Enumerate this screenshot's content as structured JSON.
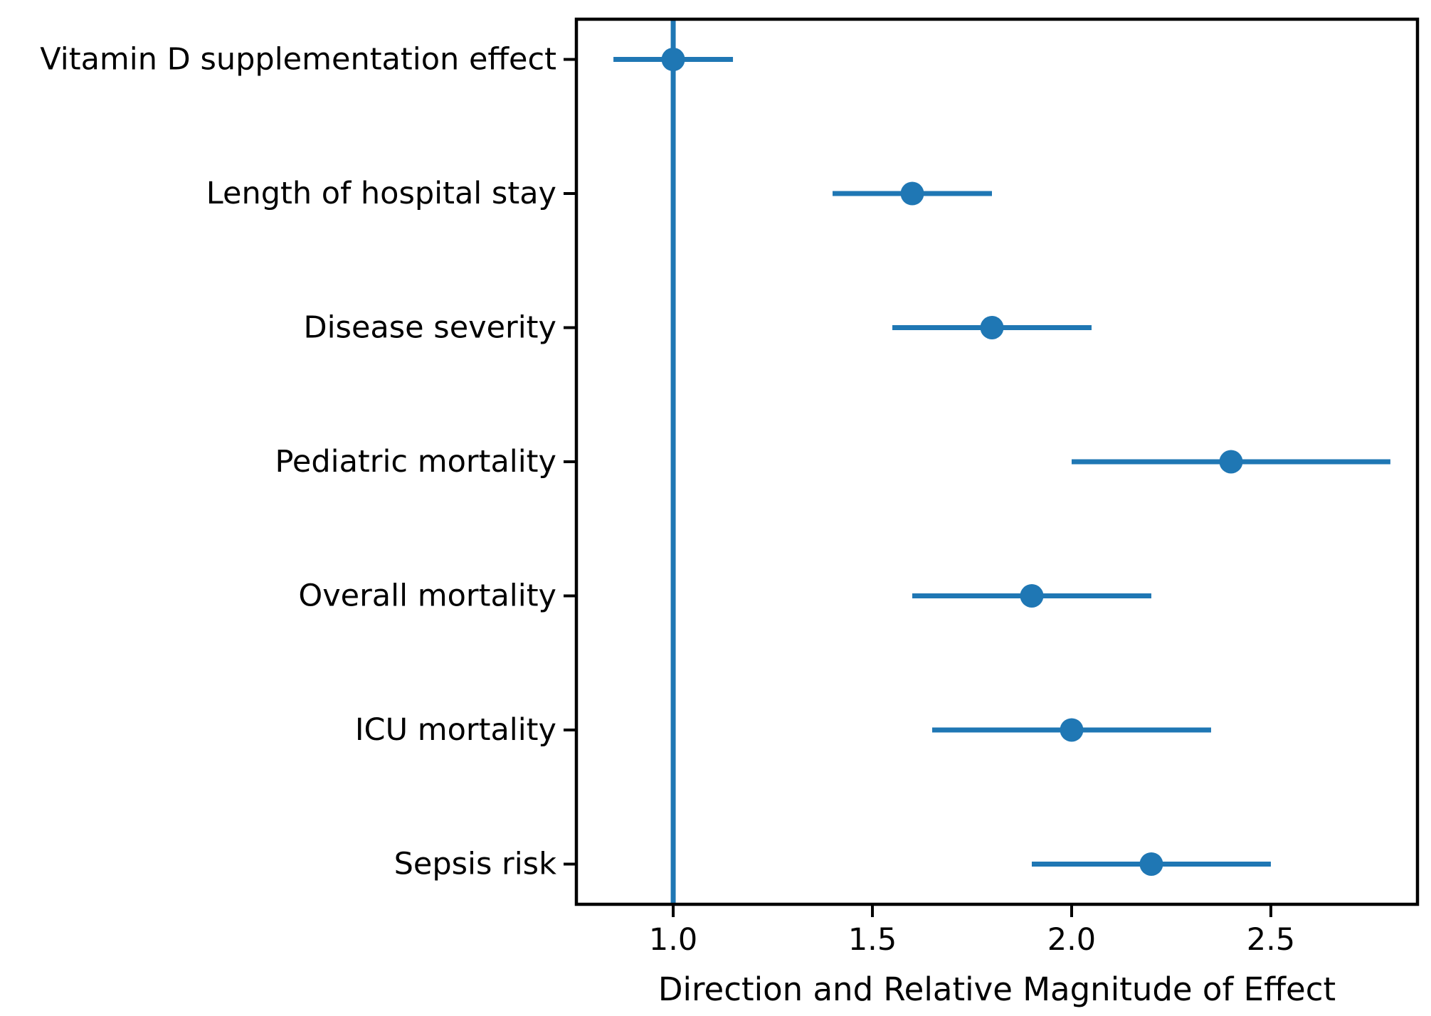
{
  "page": {
    "background": "#ffffff"
  },
  "chart_data": {
    "type": "scatter",
    "variant": "forest-plot-with-error-bars",
    "title": "",
    "xlabel": "Direction and Relative Magnitude of Effect",
    "ylabel": "",
    "categories": [
      "Vitamin D supplementation effect",
      "Length of hospital stay",
      "Disease severity",
      "Pediatric mortality",
      "Overall mortality",
      "ICU mortality",
      "Sepsis risk"
    ],
    "points": [
      {
        "category": "Vitamin D supplementation effect",
        "value": 1.0,
        "ci_low": 0.85,
        "ci_high": 1.15
      },
      {
        "category": "Length of hospital stay",
        "value": 1.6,
        "ci_low": 1.4,
        "ci_high": 1.8
      },
      {
        "category": "Disease severity",
        "value": 1.8,
        "ci_low": 1.55,
        "ci_high": 2.05
      },
      {
        "category": "Pediatric mortality",
        "value": 2.4,
        "ci_low": 2.0,
        "ci_high": 2.8
      },
      {
        "category": "Overall mortality",
        "value": 1.9,
        "ci_low": 1.6,
        "ci_high": 2.2
      },
      {
        "category": "ICU mortality",
        "value": 2.0,
        "ci_low": 1.65,
        "ci_high": 2.35
      },
      {
        "category": "Sepsis risk",
        "value": 2.2,
        "ci_low": 1.9,
        "ci_high": 2.5
      }
    ],
    "x_ticks": [
      1.0,
      1.5,
      2.0,
      2.5
    ],
    "x_tick_labels": [
      "1.0",
      "1.5",
      "2.0",
      "2.5"
    ],
    "xlim": [
      0.757,
      2.868
    ],
    "ylim_padding": 0.3,
    "reference_line": {
      "x": 1.0,
      "color": "#1f77b4"
    },
    "grid": false,
    "legend": false,
    "colors": {
      "marker": "#1f77b4",
      "error_bar": "#1f77b4",
      "axis": "#000000",
      "text": "#000000"
    }
  }
}
